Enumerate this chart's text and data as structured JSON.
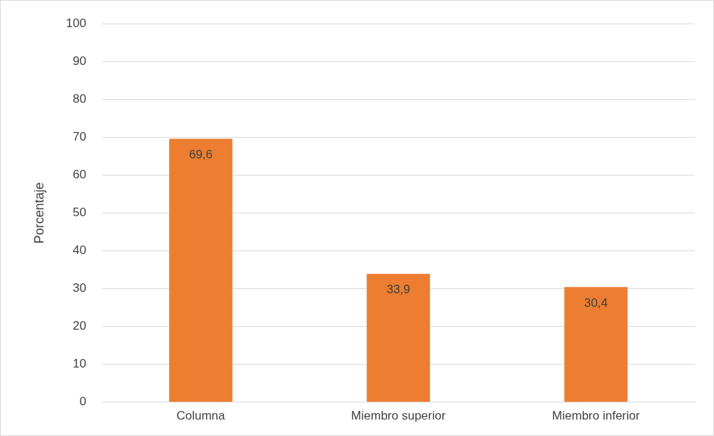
{
  "chart_data": {
    "type": "bar",
    "ylabel": "Porcentaje",
    "categories": [
      "Columna",
      "Miembro superior",
      "Miembro inferior"
    ],
    "values": [
      69.6,
      33.9,
      30.4
    ],
    "color": "#ed7d31",
    "value_labels": [
      "69,6",
      "33,9",
      "30,4"
    ],
    "ylim": [
      0,
      100
    ],
    "yticks": [
      0,
      10,
      20,
      30,
      40,
      50,
      60,
      70,
      80,
      90,
      100
    ],
    "grid": "y",
    "legend": false
  }
}
